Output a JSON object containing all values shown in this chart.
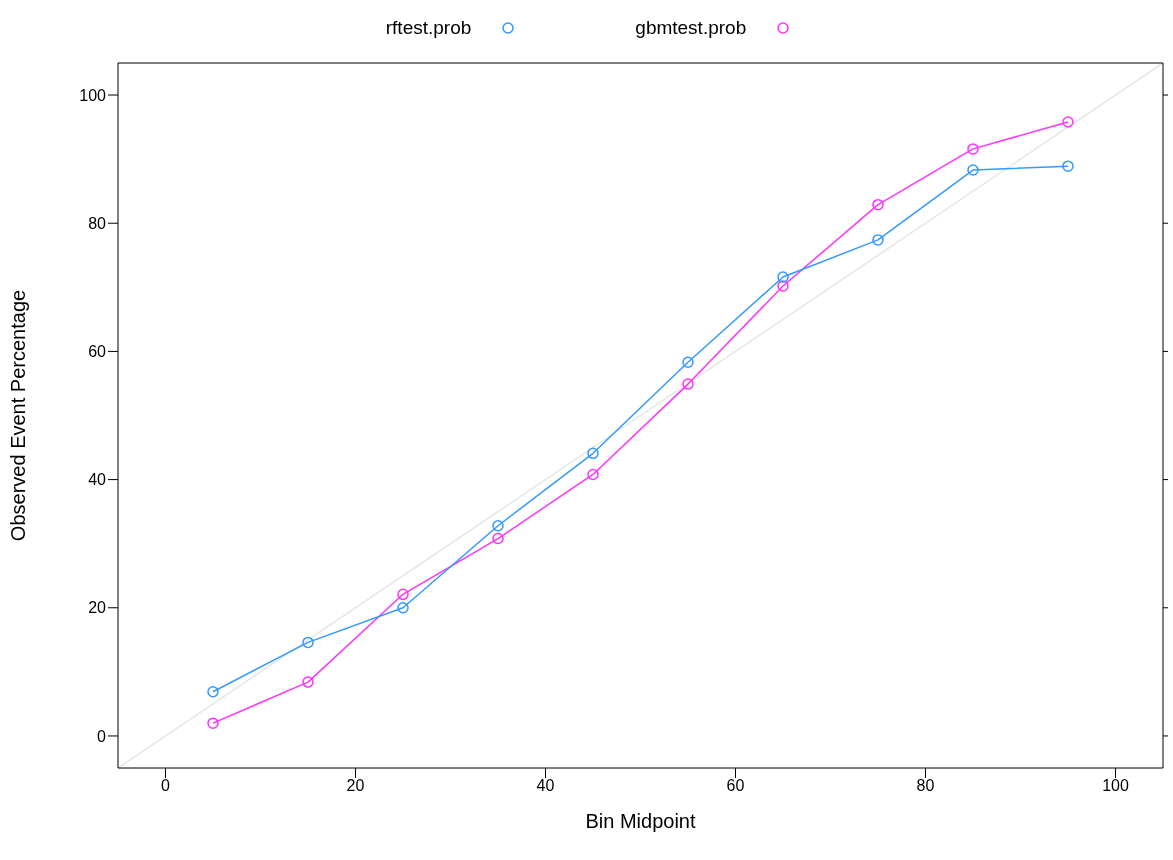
{
  "chart_data": {
    "type": "line",
    "xlabel": "Bin Midpoint",
    "ylabel": "Observed Event Percentage",
    "x": [
      5,
      15,
      25,
      35,
      45,
      55,
      65,
      75,
      85,
      95
    ],
    "series": [
      {
        "name": "rftest.prob",
        "color": "#3399ff",
        "values": [
          6.9,
          14.6,
          20,
          32.8,
          44.1,
          58.3,
          71.6,
          77.4,
          88.3,
          88.9
        ]
      },
      {
        "name": "gbmtest.prob",
        "color": "#ff33ff",
        "values": [
          2.0,
          8.4,
          22.1,
          30.8,
          40.8,
          54.9,
          70.2,
          82.9,
          91.6,
          95.8
        ]
      },
      {
        "type": "line",
        "color": "#e6e6e6",
        "x": [
          -5,
          105
        ],
        "values": [
          -5,
          105
        ],
        "marker": "none"
      }
    ],
    "xlim": [
      -5,
      105
    ],
    "xticks": [
      0,
      20,
      40,
      60,
      80,
      100
    ],
    "ylim": [
      -5,
      105
    ],
    "yticks": [
      0,
      20,
      40,
      60,
      80,
      100
    ],
    "legend": "top",
    "marker": "circle",
    "line_style": "solid"
  }
}
